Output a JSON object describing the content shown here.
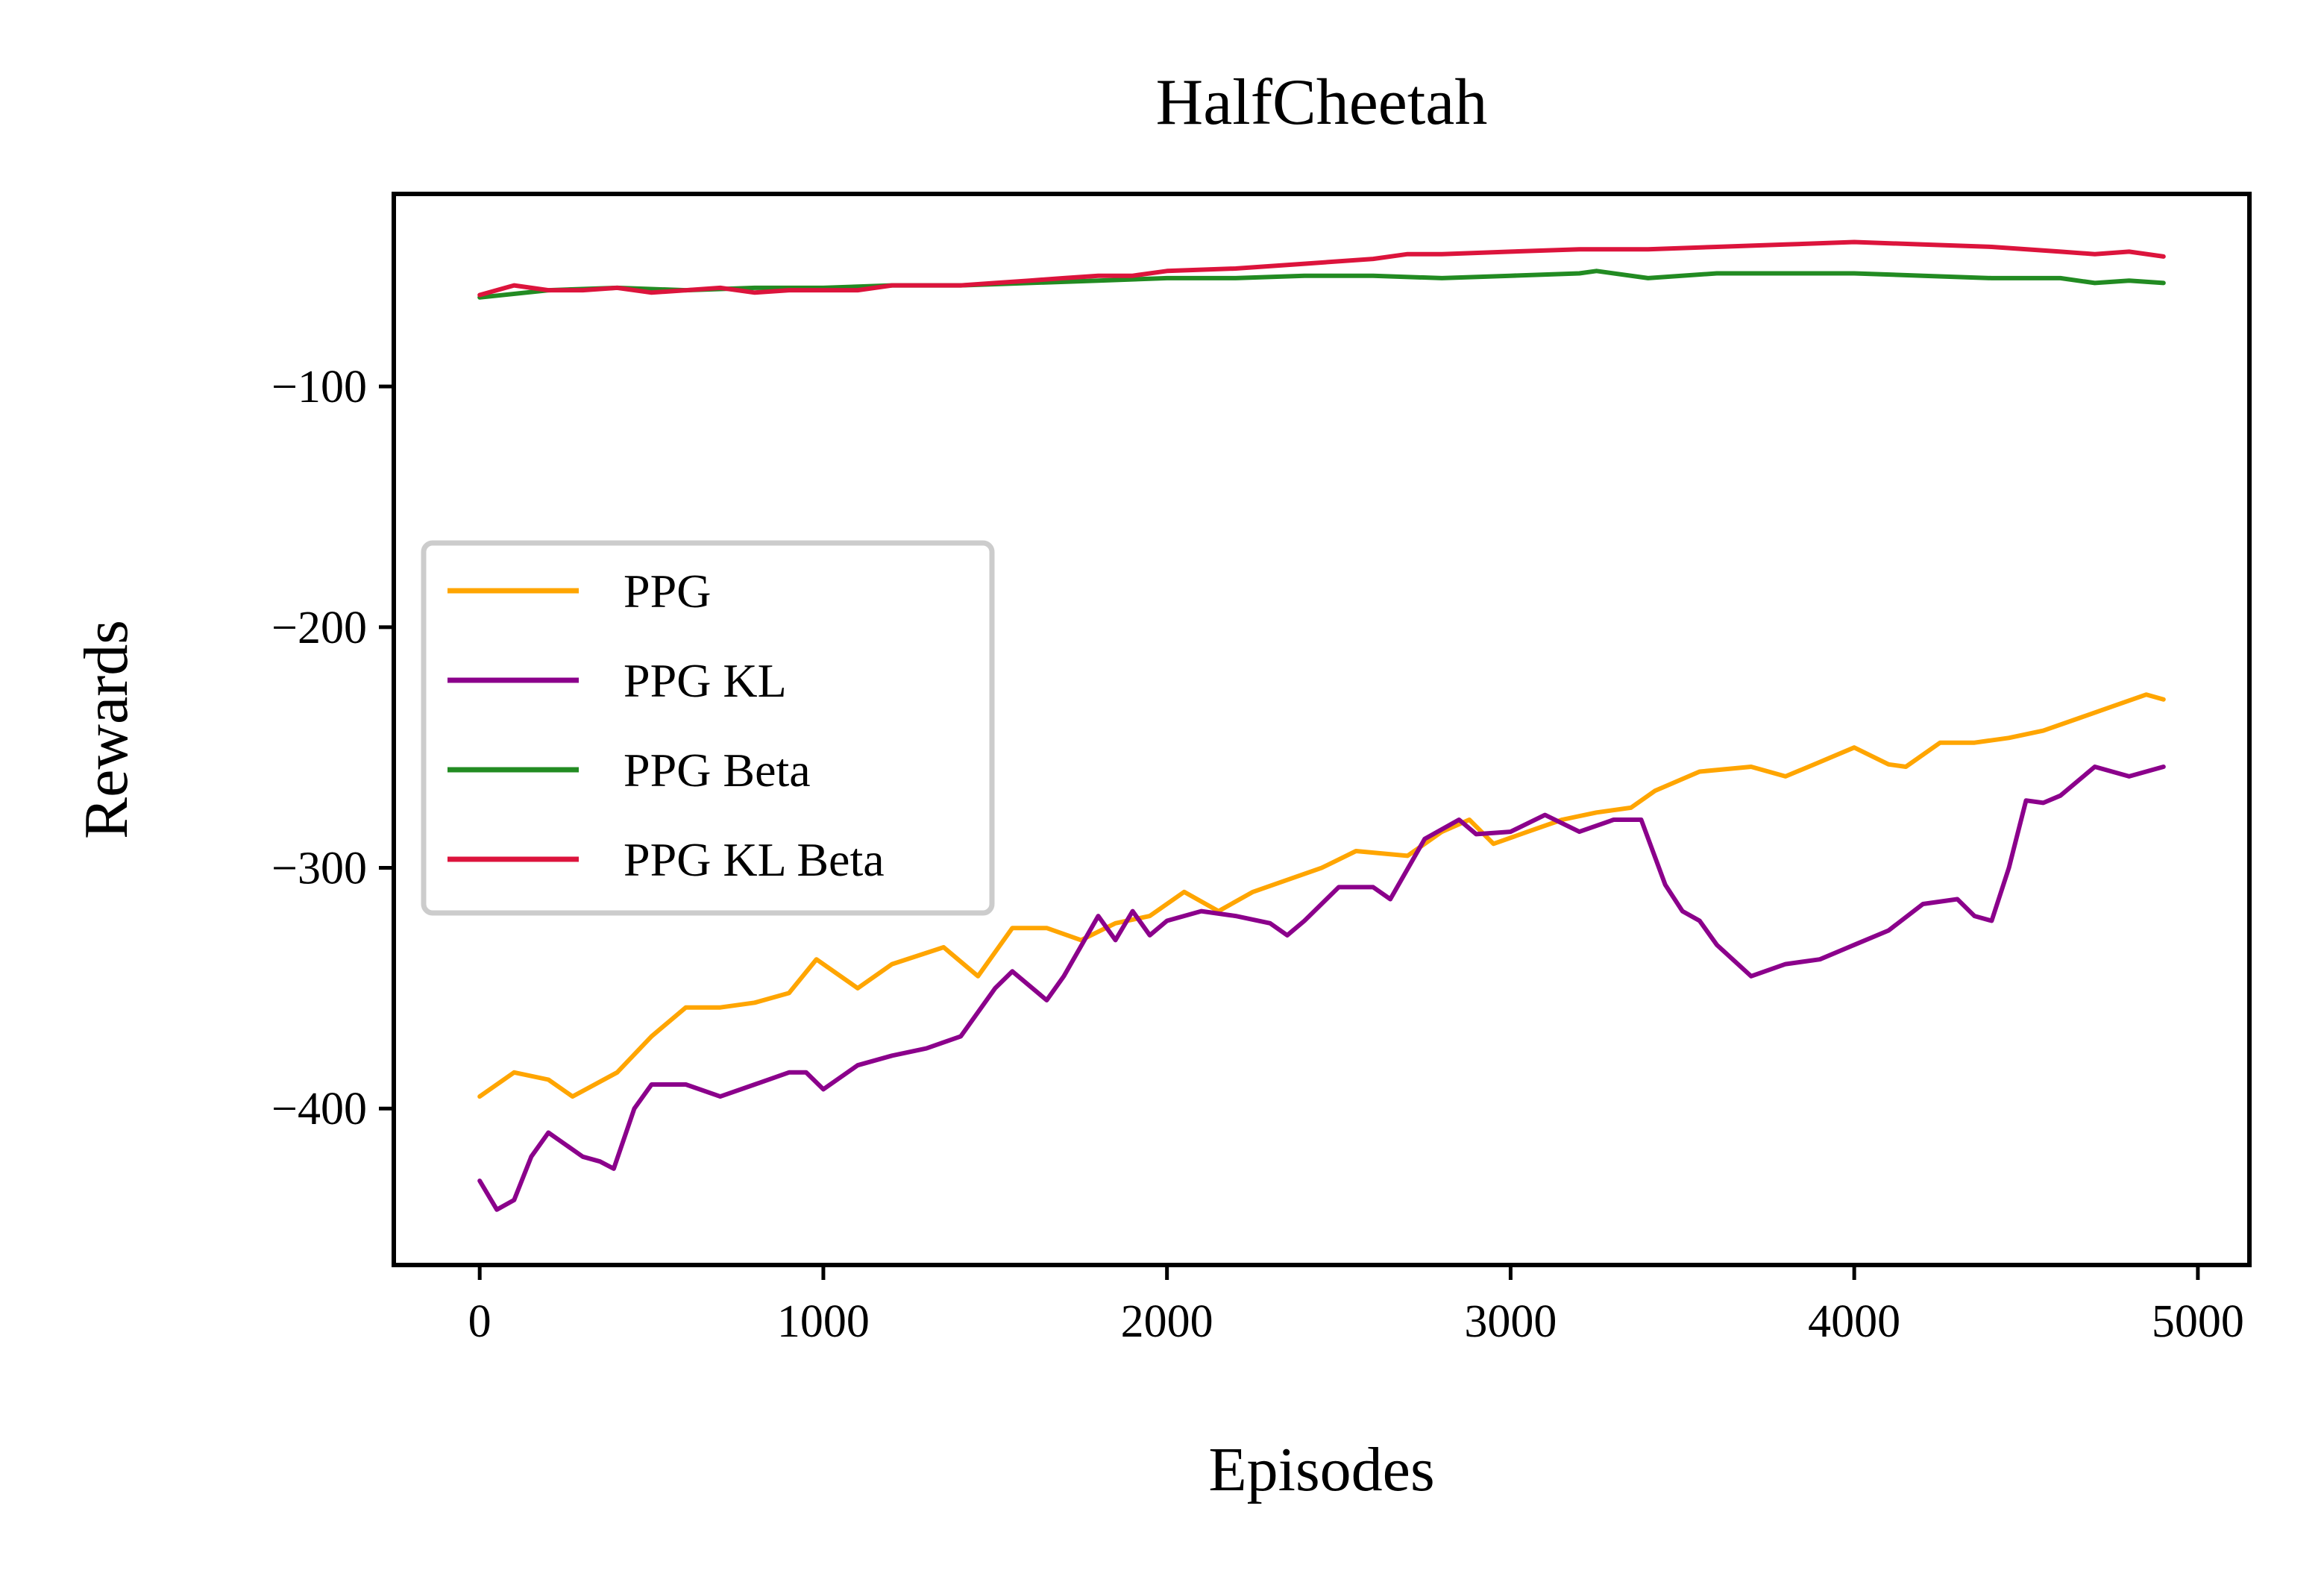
{
  "chart_data": {
    "type": "line",
    "title": "HalfCheetah",
    "xlabel": "Episodes",
    "ylabel": "Rewards",
    "xlim": [
      -250,
      5150
    ],
    "ylim": [
      -465,
      -20
    ],
    "x_ticks": [
      0,
      1000,
      2000,
      3000,
      4000,
      5000
    ],
    "x_tick_labels": [
      "0",
      "1000",
      "2000",
      "3000",
      "4000",
      "5000"
    ],
    "y_ticks": [
      -100,
      -200,
      -300,
      -400
    ],
    "y_tick_labels": [
      "−100",
      "−200",
      "−300",
      "−400"
    ],
    "grid": false,
    "legend_position": "center-left",
    "series": [
      {
        "name": "PPG",
        "color": "#FFA500",
        "x": [
          0,
          100,
          200,
          270,
          400,
          500,
          600,
          700,
          800,
          900,
          980,
          1100,
          1200,
          1350,
          1450,
          1550,
          1650,
          1750,
          1850,
          1950,
          2050,
          2150,
          2250,
          2350,
          2450,
          2550,
          2700,
          2800,
          2880,
          2950,
          3050,
          3150,
          3250,
          3350,
          3420,
          3550,
          3700,
          3800,
          3900,
          4000,
          4100,
          4150,
          4250,
          4350,
          4450,
          4550,
          4650,
          4750,
          4850,
          4900
        ],
        "values": [
          -395,
          -385,
          -388,
          -395,
          -385,
          -370,
          -358,
          -358,
          -356,
          -352,
          -338,
          -350,
          -340,
          -333,
          -345,
          -325,
          -325,
          -330,
          -323,
          -320,
          -310,
          -318,
          -310,
          -305,
          -300,
          -293,
          -295,
          -285,
          -280,
          -290,
          -285,
          -280,
          -277,
          -275,
          -268,
          -260,
          -258,
          -262,
          -256,
          -250,
          -257,
          -258,
          -248,
          -248,
          -246,
          -243,
          -238,
          -233,
          -228,
          -230
        ]
      },
      {
        "name": "PPG KL",
        "color": "#8B008B",
        "x": [
          0,
          50,
          100,
          150,
          200,
          250,
          300,
          350,
          390,
          450,
          500,
          600,
          700,
          800,
          900,
          950,
          1000,
          1100,
          1200,
          1300,
          1400,
          1500,
          1550,
          1650,
          1700,
          1800,
          1850,
          1900,
          1950,
          2000,
          2100,
          2200,
          2300,
          2350,
          2400,
          2500,
          2600,
          2650,
          2750,
          2850,
          2900,
          3000,
          3100,
          3200,
          3300,
          3380,
          3450,
          3500,
          3550,
          3600,
          3700,
          3800,
          3900,
          4000,
          4100,
          4200,
          4300,
          4350,
          4400,
          4450,
          4500,
          4550,
          4600,
          4700,
          4800,
          4900
        ],
        "values": [
          -430,
          -442,
          -438,
          -420,
          -410,
          -415,
          -420,
          -422,
          -425,
          -400,
          -390,
          -390,
          -395,
          -390,
          -385,
          -385,
          -392,
          -382,
          -378,
          -375,
          -370,
          -350,
          -343,
          -355,
          -345,
          -320,
          -330,
          -318,
          -328,
          -322,
          -318,
          -320,
          -323,
          -328,
          -322,
          -308,
          -308,
          -313,
          -288,
          -280,
          -286,
          -285,
          -278,
          -285,
          -280,
          -280,
          -307,
          -318,
          -322,
          -332,
          -345,
          -340,
          -338,
          -332,
          -326,
          -315,
          -313,
          -320,
          -322,
          -300,
          -272,
          -273,
          -270,
          -258,
          -262,
          -258
        ]
      },
      {
        "name": "PPG Beta",
        "color": "#228B22",
        "x": [
          0,
          200,
          400,
          600,
          800,
          1000,
          1200,
          1400,
          1600,
          1800,
          2000,
          2200,
          2400,
          2600,
          2800,
          3000,
          3200,
          3250,
          3400,
          3600,
          3800,
          4000,
          4200,
          4400,
          4600,
          4700,
          4800,
          4900
        ],
        "values": [
          -63,
          -60,
          -59,
          -60,
          -59,
          -59,
          -58,
          -58,
          -57,
          -56,
          -55,
          -55,
          -54,
          -54,
          -55,
          -54,
          -53,
          -52,
          -55,
          -53,
          -53,
          -53,
          -54,
          -55,
          -55,
          -57,
          -56,
          -57
        ]
      },
      {
        "name": "PPG KL Beta",
        "color": "#DC143C",
        "x": [
          0,
          100,
          200,
          300,
          400,
          500,
          600,
          700,
          800,
          900,
          1000,
          1100,
          1200,
          1300,
          1400,
          1500,
          1600,
          1700,
          1800,
          1900,
          2000,
          2200,
          2400,
          2600,
          2700,
          2800,
          3000,
          3200,
          3400,
          3600,
          3800,
          4000,
          4200,
          4400,
          4600,
          4700,
          4800,
          4900
        ],
        "values": [
          -62,
          -58,
          -60,
          -60,
          -59,
          -61,
          -60,
          -59,
          -61,
          -60,
          -60,
          -60,
          -58,
          -58,
          -58,
          -57,
          -56,
          -55,
          -54,
          -54,
          -52,
          -51,
          -49,
          -47,
          -45,
          -45,
          -44,
          -43,
          -43,
          -42,
          -41,
          -40,
          -41,
          -42,
          -44,
          -45,
          -44,
          -46
        ]
      }
    ]
  }
}
